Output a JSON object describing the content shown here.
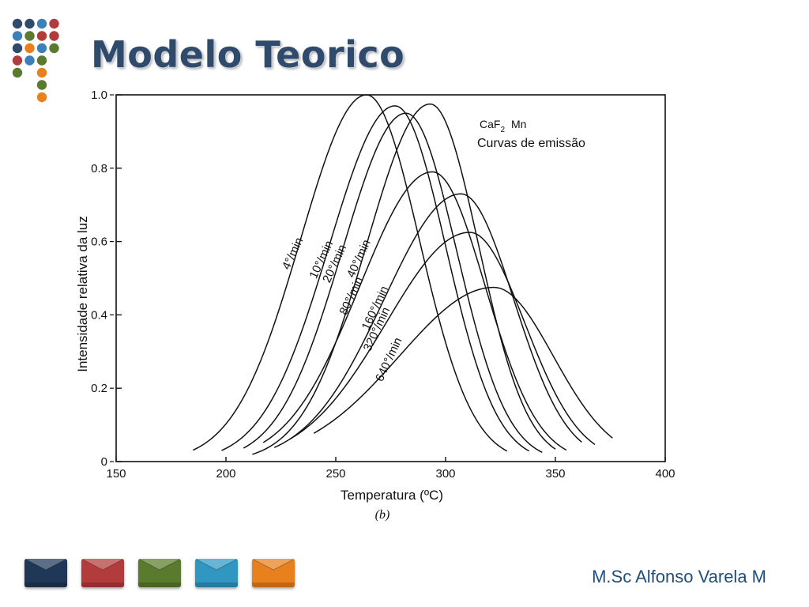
{
  "slide": {
    "title": "Modelo Teorico",
    "author": "M.Sc Alfonso Varela M",
    "nav_tiles": [
      {
        "name": "nav-tile-navy",
        "color": "#1f3858"
      },
      {
        "name": "nav-tile-red",
        "color": "#b23b3b"
      },
      {
        "name": "nav-tile-green",
        "color": "#5a7a2e"
      },
      {
        "name": "nav-tile-cyan",
        "color": "#2f97c2"
      },
      {
        "name": "nav-tile-orange",
        "color": "#e8801e"
      }
    ],
    "logo_dot_colors": [
      "#2f4a6b",
      "#b23b3b",
      "#5a7a2e",
      "#e8801e",
      "#3d7fb8"
    ]
  },
  "chart_data": {
    "type": "line",
    "annotation_line1": "CaF",
    "annotation_sub": "2",
    "annotation_mn": "Mn",
    "annotation_line2": "Curvas de emissão",
    "xlabel": "Temperatura (ºC)",
    "caption": "(b)",
    "ylabel": "Intensidade relativa da luz",
    "xlim": [
      150,
      400
    ],
    "ylim": [
      0,
      1.0
    ],
    "x_ticks": [
      "150",
      "200",
      "250",
      "300",
      "350",
      "400"
    ],
    "x_tick_values": [
      150,
      200,
      250,
      300,
      350,
      400
    ],
    "y_ticks": [
      "0",
      "0.2",
      "0.4",
      "0.6",
      "0.8",
      "1.0"
    ],
    "y_tick_values": [
      0,
      0.2,
      0.4,
      0.6,
      0.8,
      1.0
    ],
    "series": [
      {
        "name": "4°/min",
        "peak_x": 264,
        "peak_y": 1.0,
        "x_start": 185,
        "x_end": 328,
        "w_left": 30,
        "w_right": 24
      },
      {
        "name": "10°/min",
        "peak_x": 277,
        "peak_y": 0.97,
        "x_start": 198,
        "x_end": 338,
        "w_left": 30,
        "w_right": 23
      },
      {
        "name": "20°/min",
        "peak_x": 282,
        "peak_y": 0.95,
        "x_start": 208,
        "x_end": 344,
        "w_left": 29,
        "w_right": 23
      },
      {
        "name": "40°/min",
        "peak_x": 293,
        "peak_y": 0.975,
        "x_start": 212,
        "x_end": 350,
        "w_left": 29,
        "w_right": 22
      },
      {
        "name": "80°/min",
        "peak_x": 294,
        "peak_y": 0.79,
        "x_start": 217,
        "x_end": 355,
        "w_left": 33,
        "w_right": 24
      },
      {
        "name": "160°/min",
        "peak_x": 307,
        "peak_y": 0.73,
        "x_start": 222,
        "x_end": 362,
        "w_left": 35,
        "w_right": 24
      },
      {
        "name": "320°/min",
        "peak_x": 311,
        "peak_y": 0.625,
        "x_start": 229,
        "x_end": 368,
        "w_left": 38,
        "w_right": 25
      },
      {
        "name": "640°/min",
        "peak_x": 322,
        "peak_y": 0.475,
        "x_start": 240,
        "x_end": 376,
        "w_left": 43,
        "w_right": 27
      }
    ]
  }
}
